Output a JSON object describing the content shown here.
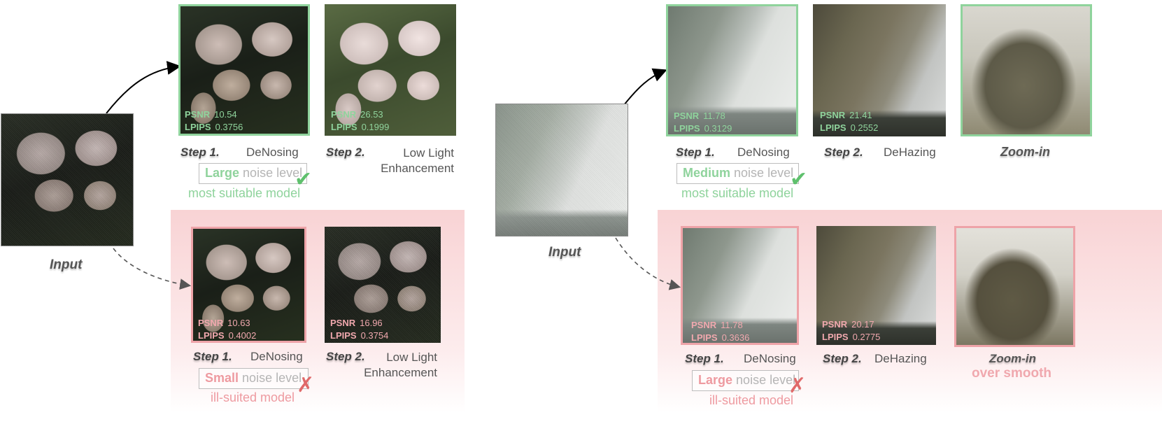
{
  "left": {
    "input_caption": "Input",
    "top": {
      "step1": {
        "number": "Step 1.",
        "task": "DeNosing",
        "psnr_label": "PSNR",
        "psnr": "10.54",
        "lpips_label": "LPIPS",
        "lpips": "0.3756"
      },
      "step2": {
        "number": "Step 2.",
        "task_line1": "Low Light",
        "task_line2": "Enhancement",
        "psnr_label": "PSNR",
        "psnr": "26.53",
        "lpips_label": "LPIPS",
        "lpips": "0.1999"
      },
      "noise_level": "Large",
      "noise_suffix": "noise level",
      "verdict": "most suitable model"
    },
    "bottom": {
      "step1": {
        "number": "Step 1.",
        "task": "DeNosing",
        "psnr_label": "PSNR",
        "psnr": "10.63",
        "lpips_label": "LPIPS",
        "lpips": "0.4002"
      },
      "step2": {
        "number": "Step 2.",
        "task_line1": "Low Light",
        "task_line2": "Enhancement",
        "psnr_label": "PSNR",
        "psnr": "16.96",
        "lpips_label": "LPIPS",
        "lpips": "0.3754"
      },
      "noise_level": "Small",
      "noise_suffix": "noise level",
      "verdict": "ill-suited model"
    }
  },
  "right": {
    "input_caption": "Input",
    "top": {
      "step1": {
        "number": "Step 1.",
        "task": "DeNosing",
        "psnr_label": "PSNR",
        "psnr": "11.78",
        "lpips_label": "LPIPS",
        "lpips": "0.3129"
      },
      "step2": {
        "number": "Step 2.",
        "task": "DeHazing",
        "psnr_label": "PSNR",
        "psnr": "21.41",
        "lpips_label": "LPIPS",
        "lpips": "0.2552"
      },
      "zoom": "Zoom-in",
      "noise_level": "Medium",
      "noise_suffix": "noise level",
      "verdict": "most suitable model"
    },
    "bottom": {
      "step1": {
        "number": "Step 1.",
        "task": "DeNosing",
        "psnr_label": "PSNR",
        "psnr": "11.78",
        "lpips_label": "LPIPS",
        "lpips": "0.3636"
      },
      "step2": {
        "number": "Step 2.",
        "task": "DeHazing",
        "psnr_label": "PSNR",
        "psnr": "20.17",
        "lpips_label": "LPIPS",
        "lpips": "0.2775"
      },
      "zoom": "Zoom-in",
      "zoom_note": "over smooth",
      "noise_level": "Large",
      "noise_suffix": "noise level",
      "verdict": "ill-suited model"
    }
  },
  "colors": {
    "good": "#8fd39c",
    "bad": "#ee9aa0",
    "band": "#f8d0d2"
  },
  "icons": {
    "good": "check-icon",
    "bad": "cross-icon"
  }
}
